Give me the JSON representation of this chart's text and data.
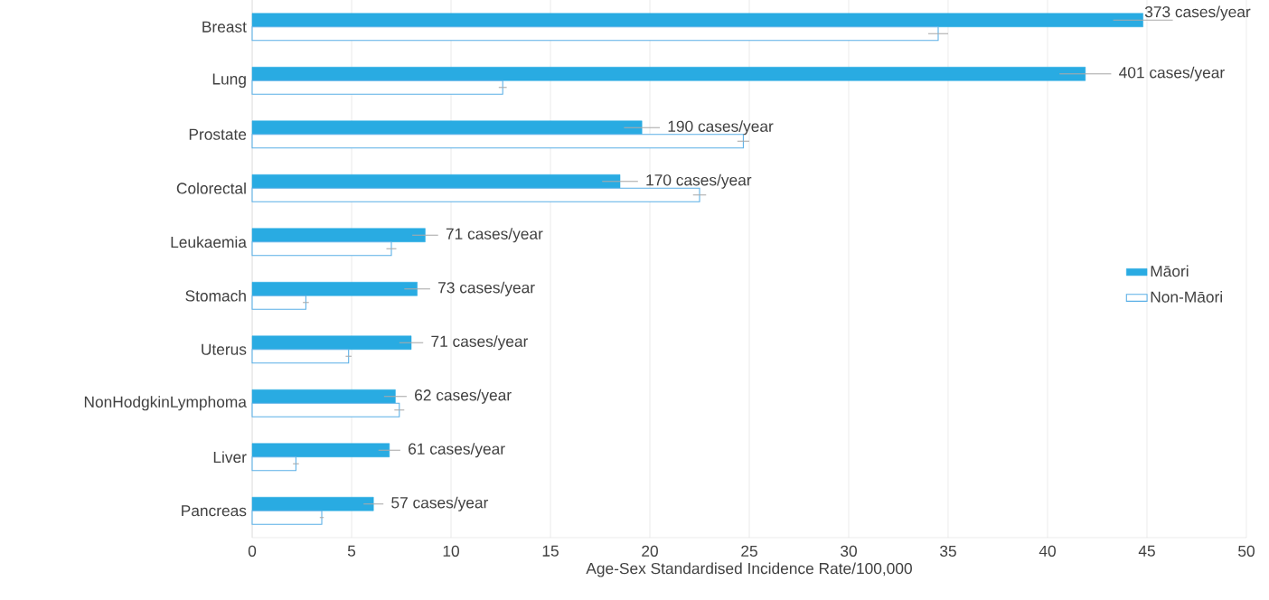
{
  "chart_data": {
    "type": "bar",
    "orientation": "horizontal",
    "categories": [
      "Breast",
      "Lung",
      "Prostate",
      "Colorectal",
      "Leukaemia",
      "Stomach",
      "Uterus",
      "NonHodgkinLymphoma",
      "Liver",
      "Pancreas"
    ],
    "series": [
      {
        "name": "Māori",
        "color": "#29abe2",
        "values": [
          44.8,
          41.9,
          19.6,
          18.5,
          8.7,
          8.3,
          8.0,
          7.2,
          6.9,
          6.1
        ],
        "errors": [
          1.5,
          1.3,
          0.9,
          0.9,
          0.65,
          0.65,
          0.6,
          0.57,
          0.55,
          0.5
        ]
      },
      {
        "name": "Non-Māori",
        "color": "#5aafe6",
        "values": [
          34.5,
          12.6,
          24.7,
          22.5,
          7.0,
          2.7,
          4.85,
          7.4,
          2.2,
          3.5
        ],
        "errors": [
          0.5,
          0.2,
          0.3,
          0.33,
          0.25,
          0.15,
          0.15,
          0.25,
          0.15,
          0.1
        ]
      }
    ],
    "xlabel": "Age-Sex Standardised Incidence Rate/100,000",
    "annotations": [
      {
        "text": "373 cases/year",
        "x": 44.8,
        "y": "Breast"
      },
      {
        "text": "401 cases/year",
        "x": 41.9,
        "y": "Lung"
      },
      {
        "text": "190 cases/year",
        "x": 19.6,
        "y": "Prostate"
      },
      {
        "text": "170 cases/year",
        "x": 18.5,
        "y": "Colorectal"
      },
      {
        "text": "71 cases/year",
        "x": 8.7,
        "y": "Leukaemia"
      },
      {
        "text": "73 cases/year",
        "x": 8.3,
        "y": "Stomach"
      },
      {
        "text": "71 cases/year",
        "x": 8.0,
        "y": "Uterus"
      },
      {
        "text": "62 cases/year",
        "x": 7.2,
        "y": "NonHodgkinLymphoma"
      },
      {
        "text": "61 cases/year",
        "x": 6.9,
        "y": "Liver"
      },
      {
        "text": "57 cases/year",
        "x": 6.1,
        "y": "Pancreas"
      }
    ],
    "xlim": [
      0,
      50
    ],
    "xticks": [
      0,
      5,
      10,
      15,
      20,
      25,
      30,
      35,
      40,
      45,
      50
    ],
    "grid": "x",
    "legend": "right"
  }
}
